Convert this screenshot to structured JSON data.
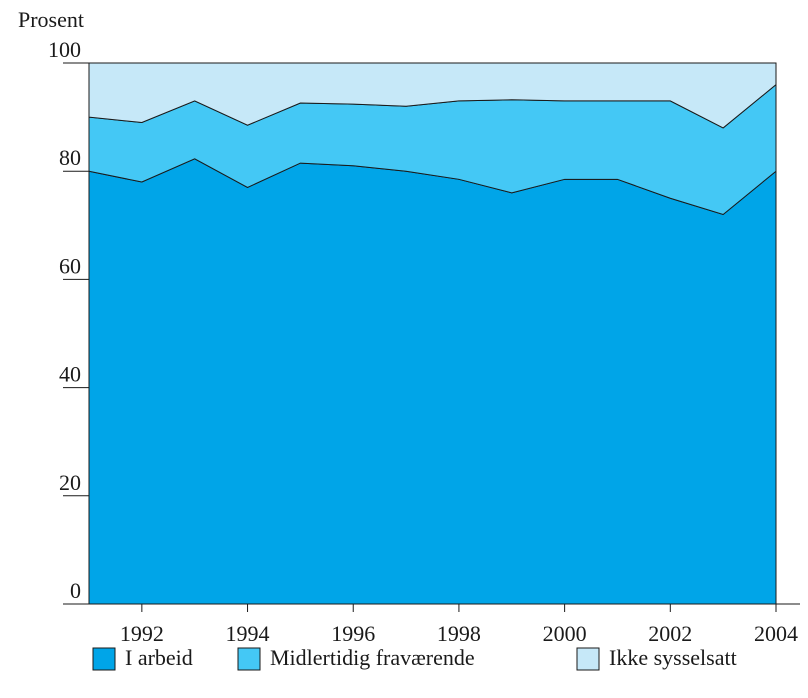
{
  "chart_data": {
    "type": "stacked-area",
    "y_axis_label": "Prosent",
    "x": [
      1991,
      1992,
      1993,
      1994,
      1995,
      1996,
      1997,
      1998,
      1999,
      2000,
      2001,
      2002,
      2003,
      2004
    ],
    "xlim": [
      1991,
      2004
    ],
    "xticks": [
      1992,
      1994,
      1996,
      1998,
      2000,
      2002,
      2004
    ],
    "ylim": [
      0,
      100
    ],
    "yticks": [
      0,
      20,
      40,
      60,
      80,
      100
    ],
    "series": [
      {
        "name": "I arbeid",
        "color": "#00a5e8",
        "values": [
          80,
          78,
          82.3,
          77,
          81.5,
          81,
          80,
          78.5,
          76,
          78.5,
          78.5,
          75,
          72,
          80
        ]
      },
      {
        "name": "Midlertidig fraværende",
        "color": "#44c8f5",
        "values": [
          10,
          11,
          10.7,
          11.5,
          11.1,
          11.4,
          12,
          14.5,
          17.2,
          14.5,
          14.5,
          18,
          16,
          16
        ]
      },
      {
        "name": "Ikke sysselsatt",
        "color": "#c6e8f8",
        "values": [
          10,
          11,
          7,
          11.5,
          7.4,
          7.6,
          8,
          7,
          6.8,
          7,
          7,
          7,
          12,
          4
        ]
      }
    ],
    "legend": "bottom"
  }
}
